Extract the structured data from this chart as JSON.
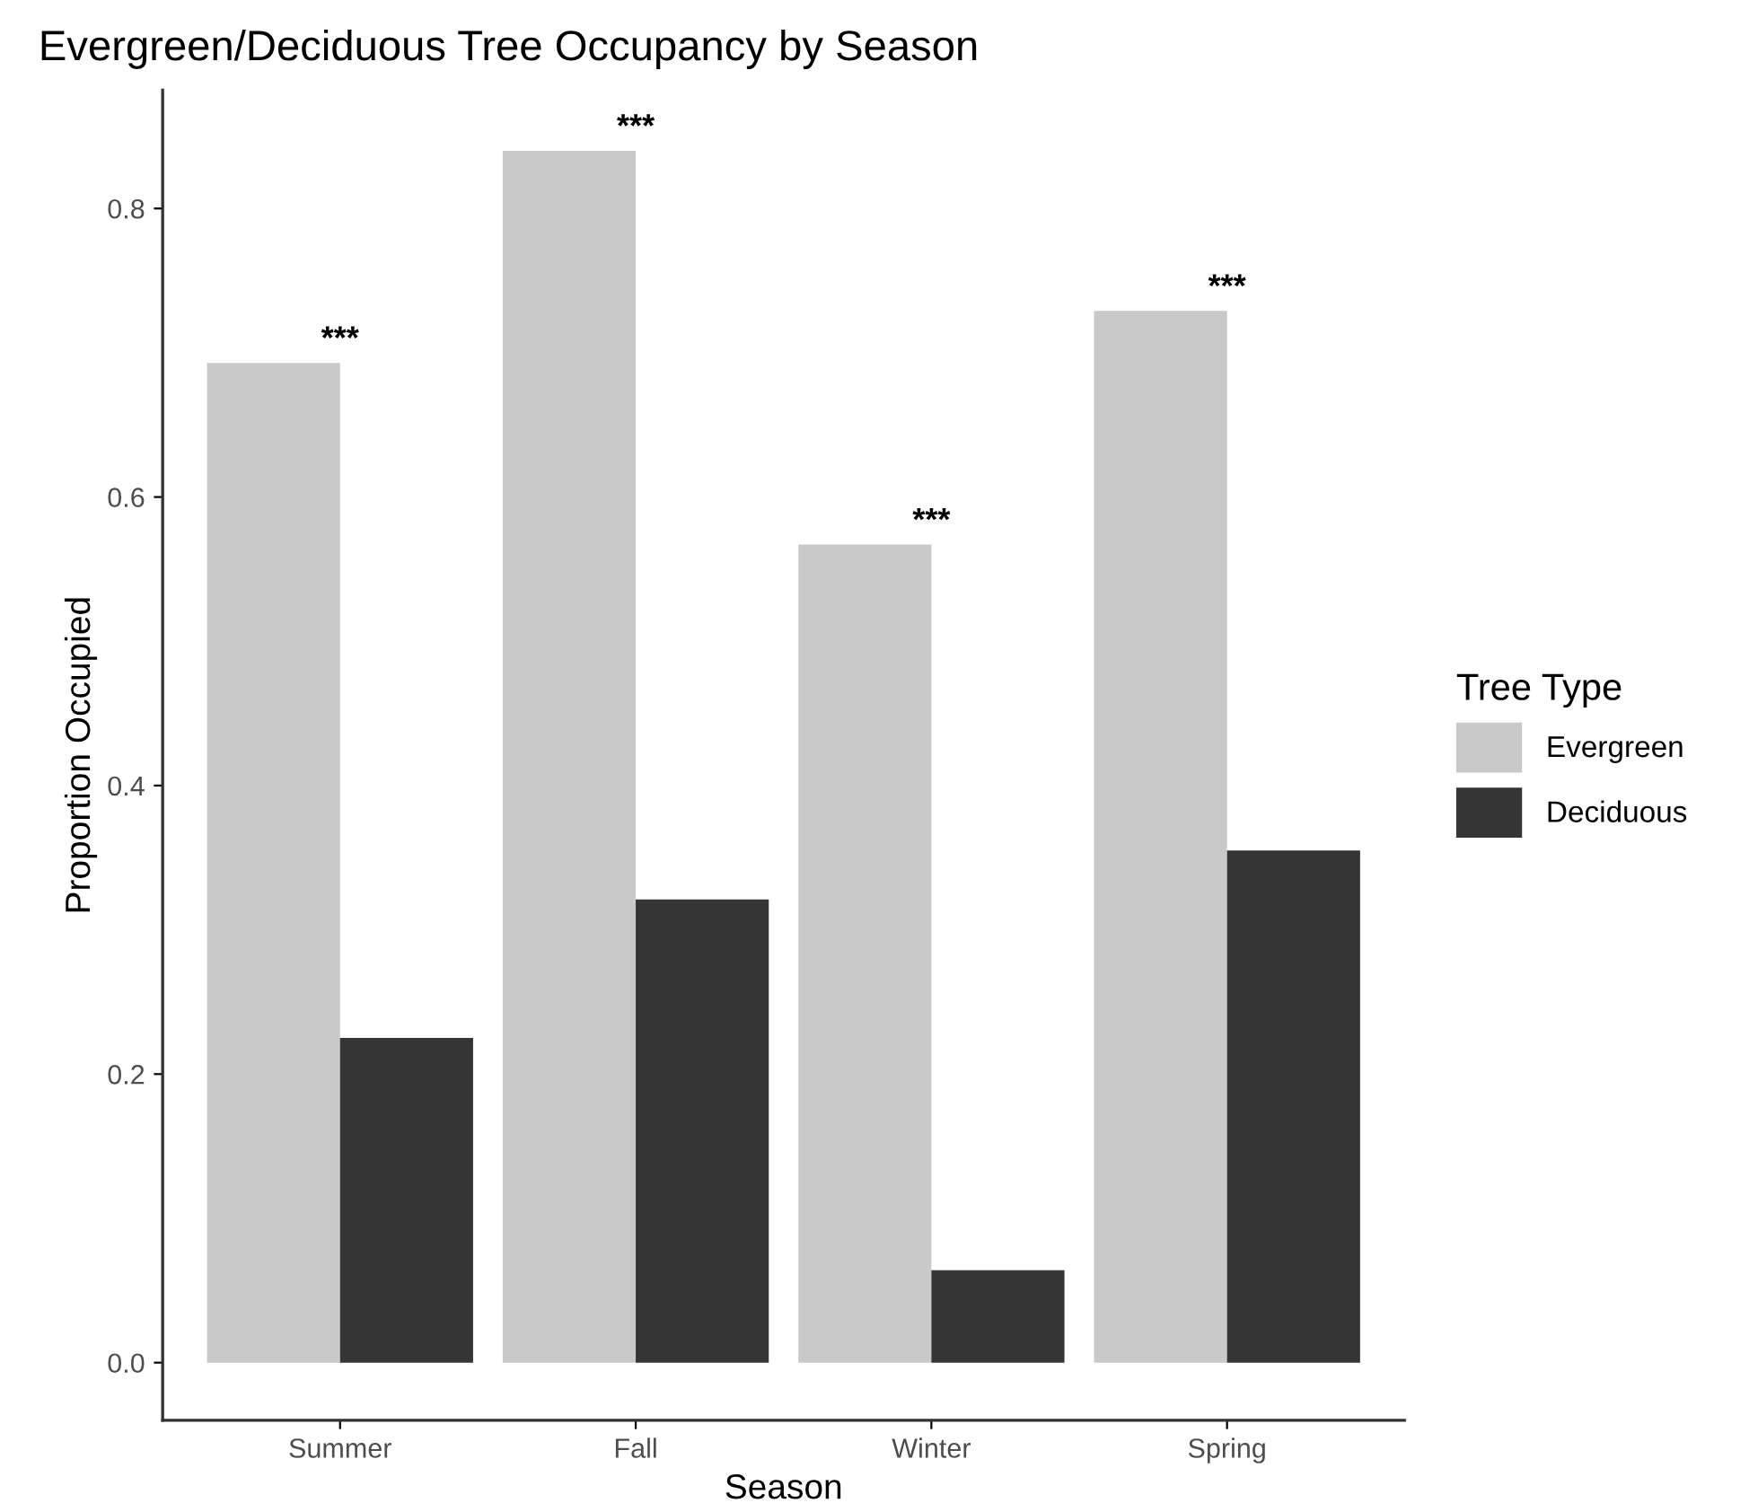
{
  "chart_data": {
    "type": "bar",
    "title": "Evergreen/Deciduous Tree Occupancy by Season",
    "xlabel": "Season",
    "ylabel": "Proportion Occupied",
    "legend_title": "Tree Type",
    "categories": [
      "Summer",
      "Fall",
      "Winter",
      "Spring"
    ],
    "series": [
      {
        "name": "Evergreen",
        "color": "#c9c9c9",
        "values": [
          0.693,
          0.84,
          0.567,
          0.729
        ]
      },
      {
        "name": "Deciduous",
        "color": "#353535",
        "values": [
          0.225,
          0.321,
          0.064,
          0.355
        ]
      }
    ],
    "ylim": [
      -0.04,
      0.882
    ],
    "yticks": [
      {
        "value": 0,
        "label": "0.0"
      },
      {
        "value": 0.2,
        "label": "0.2"
      },
      {
        "value": 0.4,
        "label": "0.4"
      },
      {
        "value": 0.6,
        "label": "0.6"
      },
      {
        "value": 0.8,
        "label": "0.8"
      }
    ],
    "grid": false,
    "legend": "right",
    "annotations": [
      {
        "text": "***",
        "x": "Summer",
        "y": 0.693
      },
      {
        "text": "***",
        "x": "Fall",
        "y": 0.84
      },
      {
        "text": "***",
        "x": "Winter",
        "y": 0.567
      },
      {
        "text": "***",
        "x": "Spring",
        "y": 0.729
      }
    ]
  }
}
